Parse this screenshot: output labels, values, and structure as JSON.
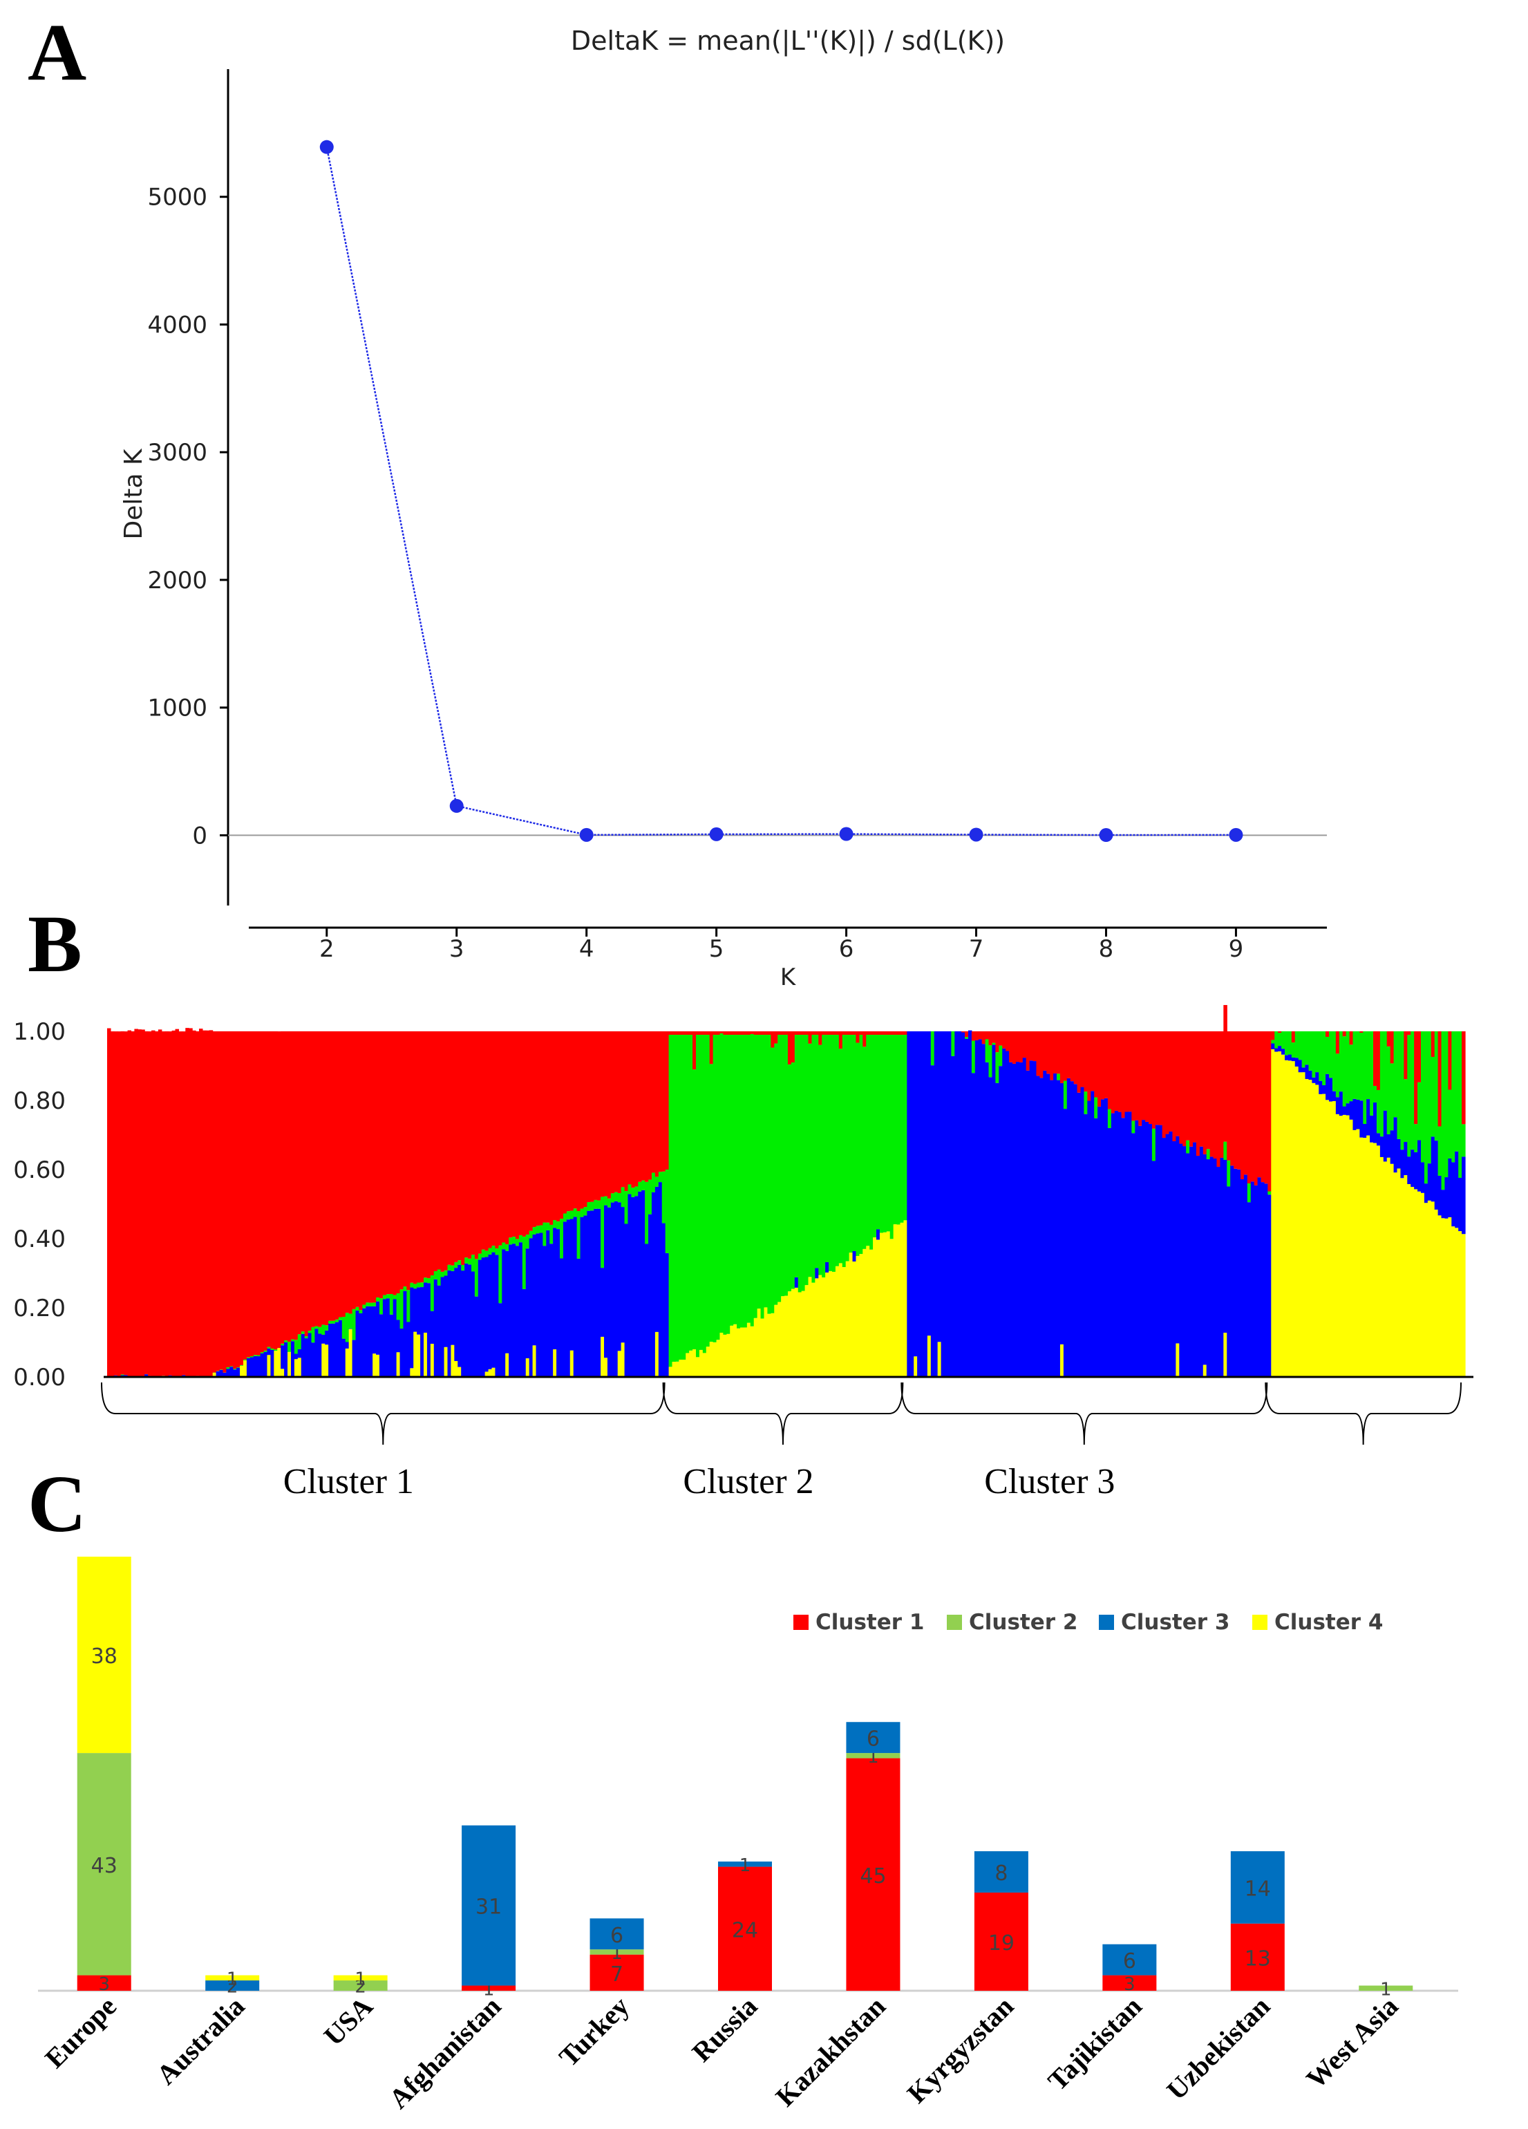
{
  "panels": {
    "A": "A",
    "B": "B",
    "C": "C"
  },
  "chart_data": [
    {
      "type": "line",
      "title": "DeltaK = mean(|L''(K)|) / sd(L(K))",
      "xlabel": "K",
      "ylabel": "Delta K",
      "x": [
        2,
        3,
        4,
        5,
        6,
        7,
        8,
        9
      ],
      "series": [
        {
          "values": [
            5390,
            230,
            3,
            8,
            10,
            5,
            2,
            3
          ]
        }
      ],
      "xlim": [
        1.4,
        9.7
      ],
      "ylim": [
        -550,
        6000
      ],
      "yticks": [
        0,
        1000,
        2000,
        3000,
        4000,
        5000
      ],
      "xticks": [
        2,
        3,
        4,
        5,
        6,
        7,
        8,
        9
      ],
      "line_color": "#1f2be6"
    },
    {
      "type": "bar",
      "stacked": true,
      "yticks": [
        "0.00",
        "0.20",
        "0.40",
        "0.60",
        "0.80",
        "1.00"
      ],
      "ylim": [
        0,
        1
      ],
      "colors": {
        "red": "#ff0000",
        "green": "#00ee00",
        "blue": "#0000ff",
        "yellow": "#ffff00"
      },
      "groups": [
        {
          "label": "Cluster 1",
          "sample_count": 165,
          "main": "red"
        },
        {
          "label": "Cluster 2",
          "sample_count": 70,
          "main": "green"
        },
        {
          "label": "Cluster 3",
          "sample_count": 107,
          "main": "blue"
        },
        {
          "label": "",
          "sample_count": 57,
          "main": "yellow"
        }
      ],
      "ranges": {
        "cluster1_red_min": 0.4,
        "cluster2_green_min": 0.55,
        "cluster3_blue_min": 0.5,
        "cluster4_yellow_min": 0.41
      }
    },
    {
      "type": "bar",
      "stacked": true,
      "categories": [
        "Europe",
        "Australia",
        "USA",
        "Afghanistan",
        "Turkey",
        "Russia",
        "Kazakhstan",
        "Kyrgyzstan",
        "Tajikistan",
        "Uzbekistan",
        "West Asia"
      ],
      "series": [
        {
          "name": "Cluster 1",
          "color": "#ff0000",
          "values": [
            3,
            0,
            0,
            1,
            7,
            24,
            45,
            19,
            3,
            13,
            0
          ]
        },
        {
          "name": "Cluster 2",
          "color": "#92d050",
          "values": [
            43,
            0,
            2,
            0,
            1,
            0,
            1,
            0,
            0,
            0,
            1
          ]
        },
        {
          "name": "Cluster 3",
          "color": "#0070c0",
          "values": [
            0,
            2,
            0,
            31,
            6,
            1,
            6,
            8,
            6,
            14,
            0
          ]
        },
        {
          "name": "Cluster 4",
          "color": "#ffff00",
          "values": [
            38,
            1,
            1,
            0,
            0,
            0,
            0,
            0,
            0,
            0,
            0
          ]
        }
      ],
      "legend_position": "top-right",
      "ylim": [
        0,
        84
      ]
    }
  ]
}
